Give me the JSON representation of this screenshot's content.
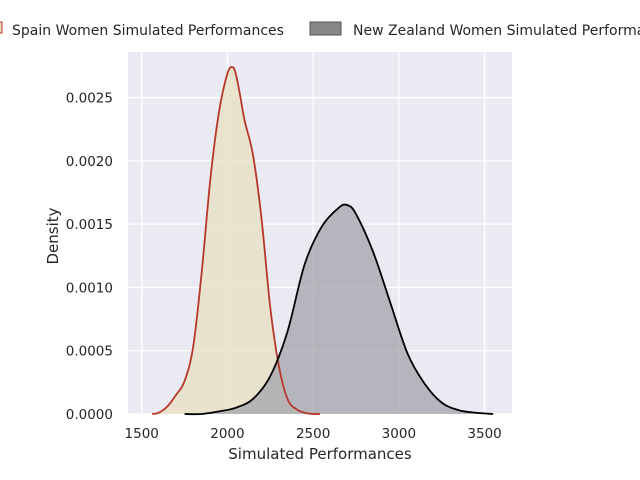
{
  "chart_data": {
    "type": "area",
    "title": "",
    "xlabel": "Simulated Performances",
    "ylabel": "Density",
    "xlim": [
      1420,
      3660
    ],
    "ylim": [
      0,
      0.00286
    ],
    "x_ticks": [
      1500,
      2000,
      2500,
      3000,
      3500
    ],
    "y_ticks": [
      0.0,
      0.0005,
      0.001,
      0.0015,
      0.002,
      0.0025
    ],
    "x_tick_labels": [
      "1500",
      "2000",
      "2500",
      "3000",
      "3500"
    ],
    "y_tick_labels": [
      "0.0000",
      "0.0005",
      "0.0010",
      "0.0015",
      "0.0020",
      "0.0025"
    ],
    "grid": true,
    "legend_position": "top, above plot",
    "background_color": "#eaeaf2",
    "series": [
      {
        "name": "Spain Women Simulated Performances",
        "line_color": "#b5382b",
        "fill_color": "#e8dfc0",
        "x": [
          1560,
          1600,
          1650,
          1700,
          1750,
          1800,
          1850,
          1900,
          1950,
          2000,
          2030,
          2050,
          2075,
          2100,
          2150,
          2200,
          2250,
          2300,
          2350,
          2400,
          2450,
          2500,
          2540
        ],
        "y": [
          0.0,
          1e-05,
          6e-05,
          0.00015,
          0.00026,
          0.00053,
          0.00112,
          0.00185,
          0.00238,
          0.00269,
          0.00274,
          0.00268,
          0.00251,
          0.00232,
          0.00204,
          0.00153,
          0.00084,
          0.00038,
          0.00012,
          4e-05,
          1e-05,
          0.0,
          0.0
        ]
      },
      {
        "name": "New Zealand Women Simulated Performances",
        "line_color": "#000000",
        "fill_color": "#a3a3ab",
        "x": [
          1750,
          1850,
          1950,
          2050,
          2150,
          2250,
          2350,
          2450,
          2550,
          2650,
          2700,
          2750,
          2850,
          2950,
          3050,
          3150,
          3250,
          3350,
          3450,
          3550
        ],
        "y": [
          0.0,
          0.0,
          2e-05,
          5e-05,
          0.00012,
          0.0003,
          0.00065,
          0.00118,
          0.00148,
          0.00163,
          0.00165,
          0.00158,
          0.00128,
          0.00088,
          0.00048,
          0.00024,
          9e-05,
          3e-05,
          1e-05,
          0.0
        ]
      }
    ]
  }
}
